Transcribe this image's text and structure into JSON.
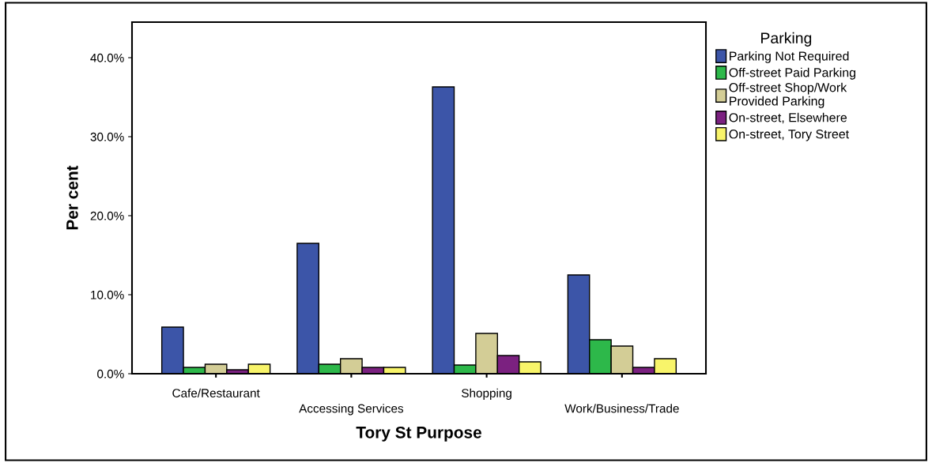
{
  "chart_data": {
    "type": "bar",
    "xlabel": "Tory St Purpose",
    "ylabel": "Per cent",
    "legend_title": "Parking",
    "categories": [
      "Cafe/Restaurant",
      "Accessing Services",
      "Shopping",
      "Work/Business/Trade"
    ],
    "series": [
      {
        "name": "Parking Not Required",
        "color": "#3c55a8",
        "values": [
          5.9,
          16.5,
          36.3,
          12.5
        ]
      },
      {
        "name": "Off-street Paid Parking",
        "color": "#2db84a",
        "values": [
          0.8,
          1.2,
          1.1,
          4.3
        ]
      },
      {
        "name": "Off-street Shop/Work\nProvided Parking",
        "color": "#d3cd96",
        "values": [
          1.2,
          1.9,
          5.1,
          3.5
        ]
      },
      {
        "name": "On-street, Elsewhere",
        "color": "#7b2180",
        "values": [
          0.5,
          0.8,
          2.3,
          0.8
        ]
      },
      {
        "name": "On-street, Tory Street",
        "color": "#f8f46a",
        "values": [
          1.2,
          0.8,
          1.5,
          1.9
        ]
      }
    ],
    "ylim": [
      0,
      44.5
    ],
    "yticks": [
      {
        "value": 0,
        "label": "0.0%"
      },
      {
        "value": 10,
        "label": "10.0%"
      },
      {
        "value": 20,
        "label": "20.0%"
      },
      {
        "value": 30,
        "label": "30.0%"
      },
      {
        "value": 40,
        "label": "40.0%"
      }
    ],
    "grid": false,
    "legend": "right"
  }
}
